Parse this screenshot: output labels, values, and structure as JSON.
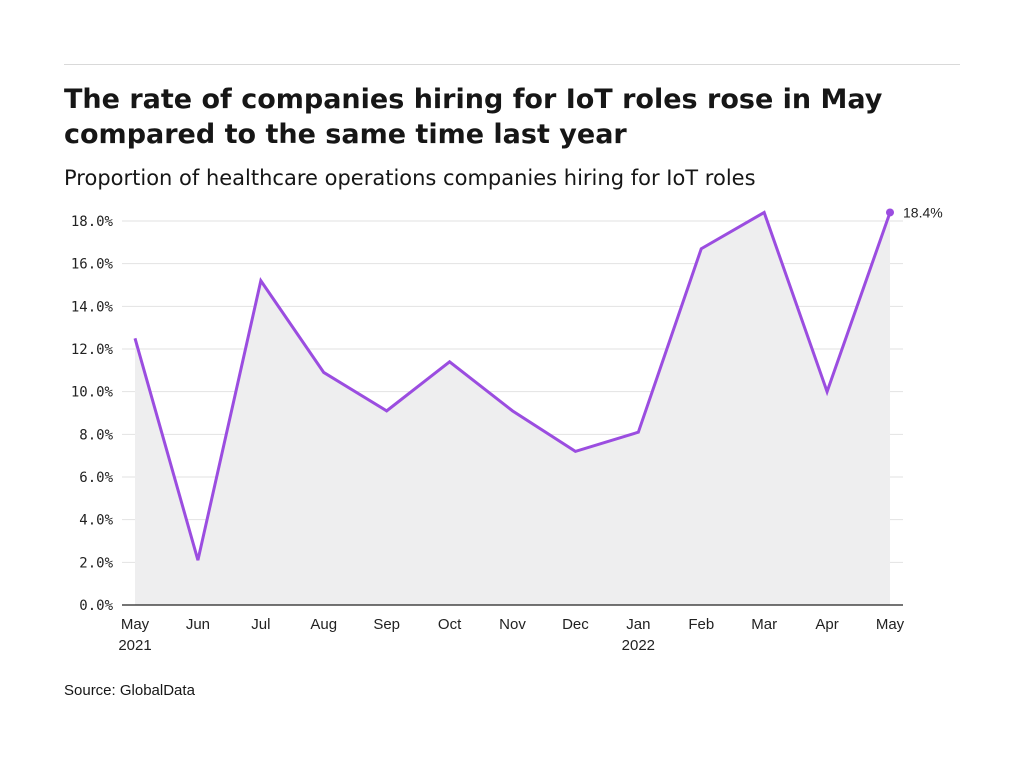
{
  "title": "The rate of companies hiring for IoT roles rose in May compared to the same time last year",
  "subtitle": "Proportion of healthcare operations companies hiring for IoT roles",
  "source": "Source: GlobalData",
  "colors": {
    "line": "#9b4de0",
    "area": "#eeeeef",
    "grid": "#e2e2e2",
    "axis": "#222222"
  },
  "chart_data": {
    "type": "area",
    "title": "The rate of companies hiring for IoT roles rose in May compared to the same time last year",
    "subtitle": "Proportion of healthcare operations companies hiring for IoT roles",
    "categories": [
      "May 2021",
      "Jun",
      "Jul",
      "Aug",
      "Sep",
      "Oct",
      "Nov",
      "Dec",
      "Jan 2022",
      "Feb",
      "Mar",
      "Apr",
      "May"
    ],
    "x_tick_labels": [
      [
        "May",
        "2021"
      ],
      [
        "Jun"
      ],
      [
        "Jul"
      ],
      [
        "Aug"
      ],
      [
        "Sep"
      ],
      [
        "Oct"
      ],
      [
        "Nov"
      ],
      [
        "Dec"
      ],
      [
        "Jan",
        "2022"
      ],
      [
        "Feb"
      ],
      [
        "Mar"
      ],
      [
        "Apr"
      ],
      [
        "May"
      ]
    ],
    "series": [
      {
        "values": [
          12.5,
          2.1,
          15.2,
          10.9,
          9.1,
          11.4,
          9.1,
          7.2,
          8.1,
          16.7,
          18.4,
          10.0,
          18.4
        ]
      }
    ],
    "y_ticks": [
      "0.0%",
      "2.0%",
      "4.0%",
      "6.0%",
      "8.0%",
      "10.0%",
      "12.0%",
      "14.0%",
      "16.0%",
      "18.0%"
    ],
    "ylim": [
      0,
      18.0
    ],
    "xlabel": "",
    "ylabel": "",
    "grid": true,
    "end_label": "18.4%"
  }
}
